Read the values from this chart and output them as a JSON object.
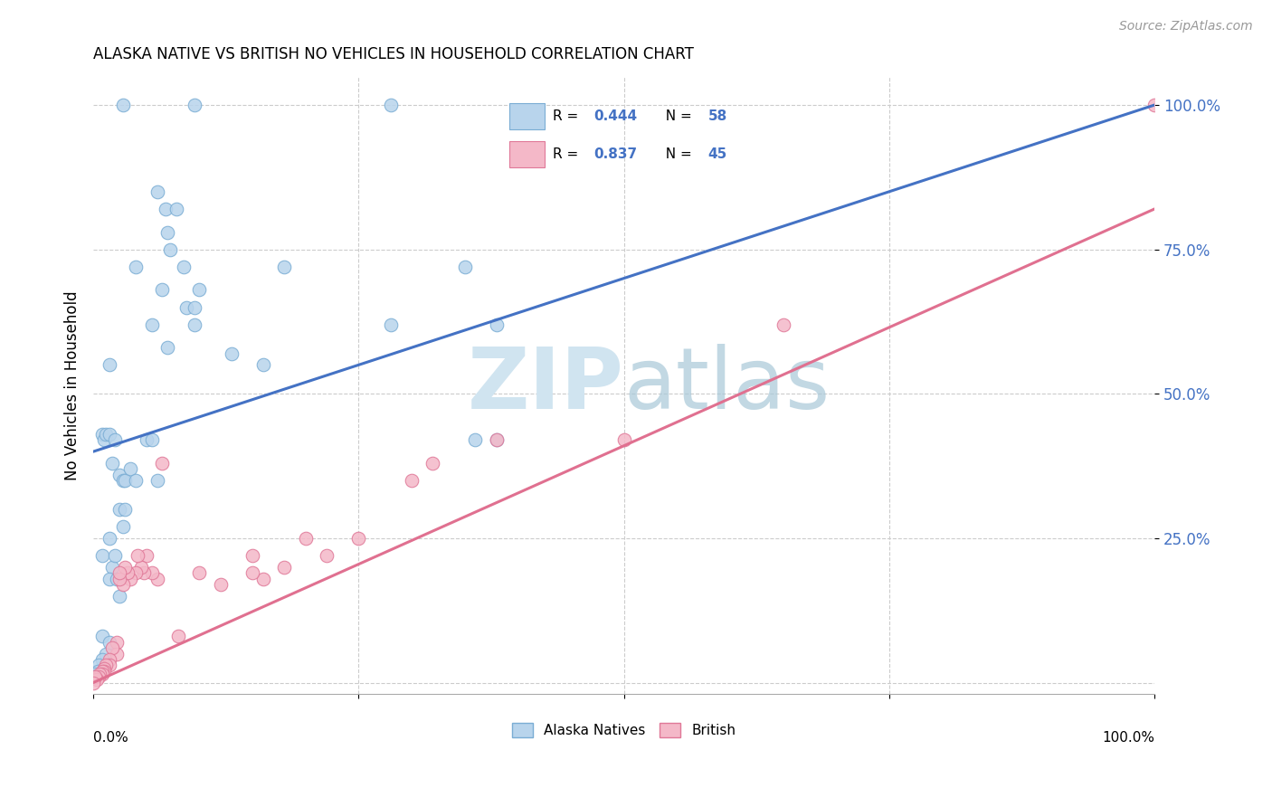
{
  "title": "ALASKA NATIVE VS BRITISH NO VEHICLES IN HOUSEHOLD CORRELATION CHART",
  "source": "Source: ZipAtlas.com",
  "ylabel": "No Vehicles in Household",
  "ytick_labels": [
    "100.0%",
    "75.0%",
    "50.0%",
    "25.0%"
  ],
  "ytick_values": [
    1.0,
    0.75,
    0.5,
    0.25
  ],
  "xlim": [
    0.0,
    1.0
  ],
  "ylim": [
    -0.02,
    1.05
  ],
  "legend_label_1": "Alaska Natives",
  "legend_label_2": "British",
  "alaska_fill_color": "#b8d4ec",
  "alaska_edge_color": "#7aadd4",
  "british_fill_color": "#f4b8c8",
  "british_edge_color": "#e07898",
  "alaska_line_color": "#4472c4",
  "british_line_color": "#e07090",
  "text_blue": "#4472c4",
  "background_color": "#ffffff",
  "grid_color": "#cccccc",
  "watermark_color": "#d0e4f0",
  "alaska_R": 0.444,
  "alaska_N": 58,
  "british_R": 0.837,
  "british_N": 45,
  "alaska_line_y0": 0.4,
  "alaska_line_y1": 1.0,
  "british_line_y0": 0.0,
  "british_line_y1": 0.82,
  "alaska_points": [
    [
      0.028,
      1.0
    ],
    [
      0.095,
      1.0
    ],
    [
      0.28,
      1.0
    ],
    [
      0.06,
      0.85
    ],
    [
      0.068,
      0.82
    ],
    [
      0.078,
      0.82
    ],
    [
      0.07,
      0.78
    ],
    [
      0.072,
      0.75
    ],
    [
      0.085,
      0.72
    ],
    [
      0.065,
      0.68
    ],
    [
      0.088,
      0.65
    ],
    [
      0.095,
      0.65
    ],
    [
      0.1,
      0.68
    ],
    [
      0.095,
      0.62
    ],
    [
      0.04,
      0.72
    ],
    [
      0.055,
      0.62
    ],
    [
      0.18,
      0.72
    ],
    [
      0.07,
      0.58
    ],
    [
      0.13,
      0.57
    ],
    [
      0.015,
      0.55
    ],
    [
      0.16,
      0.55
    ],
    [
      0.28,
      0.62
    ],
    [
      0.35,
      0.72
    ],
    [
      0.38,
      0.62
    ],
    [
      0.36,
      0.42
    ],
    [
      0.38,
      0.42
    ],
    [
      0.008,
      0.43
    ],
    [
      0.01,
      0.42
    ],
    [
      0.012,
      0.43
    ],
    [
      0.015,
      0.43
    ],
    [
      0.02,
      0.42
    ],
    [
      0.018,
      0.38
    ],
    [
      0.025,
      0.36
    ],
    [
      0.028,
      0.35
    ],
    [
      0.025,
      0.3
    ],
    [
      0.03,
      0.35
    ],
    [
      0.035,
      0.37
    ],
    [
      0.05,
      0.42
    ],
    [
      0.055,
      0.42
    ],
    [
      0.04,
      0.35
    ],
    [
      0.06,
      0.35
    ],
    [
      0.008,
      0.22
    ],
    [
      0.015,
      0.25
    ],
    [
      0.018,
      0.2
    ],
    [
      0.02,
      0.22
    ],
    [
      0.028,
      0.27
    ],
    [
      0.03,
      0.3
    ],
    [
      0.015,
      0.18
    ],
    [
      0.022,
      0.18
    ],
    [
      0.025,
      0.15
    ],
    [
      0.008,
      0.08
    ],
    [
      0.012,
      0.05
    ],
    [
      0.015,
      0.07
    ],
    [
      0.008,
      0.04
    ],
    [
      0.005,
      0.03
    ],
    [
      0.004,
      0.02
    ],
    [
      0.002,
      0.015
    ],
    [
      0.001,
      0.01
    ]
  ],
  "british_points": [
    [
      1.0,
      1.0
    ],
    [
      0.65,
      0.62
    ],
    [
      0.5,
      0.42
    ],
    [
      0.38,
      0.42
    ],
    [
      0.32,
      0.38
    ],
    [
      0.3,
      0.35
    ],
    [
      0.25,
      0.25
    ],
    [
      0.22,
      0.22
    ],
    [
      0.2,
      0.25
    ],
    [
      0.18,
      0.2
    ],
    [
      0.16,
      0.18
    ],
    [
      0.15,
      0.22
    ],
    [
      0.15,
      0.19
    ],
    [
      0.12,
      0.17
    ],
    [
      0.1,
      0.19
    ],
    [
      0.08,
      0.08
    ],
    [
      0.065,
      0.38
    ],
    [
      0.06,
      0.18
    ],
    [
      0.055,
      0.19
    ],
    [
      0.05,
      0.22
    ],
    [
      0.048,
      0.19
    ],
    [
      0.045,
      0.2
    ],
    [
      0.042,
      0.22
    ],
    [
      0.04,
      0.19
    ],
    [
      0.035,
      0.18
    ],
    [
      0.032,
      0.19
    ],
    [
      0.03,
      0.2
    ],
    [
      0.028,
      0.17
    ],
    [
      0.025,
      0.18
    ],
    [
      0.025,
      0.19
    ],
    [
      0.022,
      0.07
    ],
    [
      0.022,
      0.05
    ],
    [
      0.018,
      0.06
    ],
    [
      0.015,
      0.04
    ],
    [
      0.015,
      0.03
    ],
    [
      0.012,
      0.03
    ],
    [
      0.01,
      0.025
    ],
    [
      0.01,
      0.02
    ],
    [
      0.008,
      0.02
    ],
    [
      0.008,
      0.015
    ],
    [
      0.006,
      0.015
    ],
    [
      0.005,
      0.01
    ],
    [
      0.003,
      0.005
    ],
    [
      0.002,
      0.01
    ],
    [
      0.0,
      0.0
    ]
  ]
}
